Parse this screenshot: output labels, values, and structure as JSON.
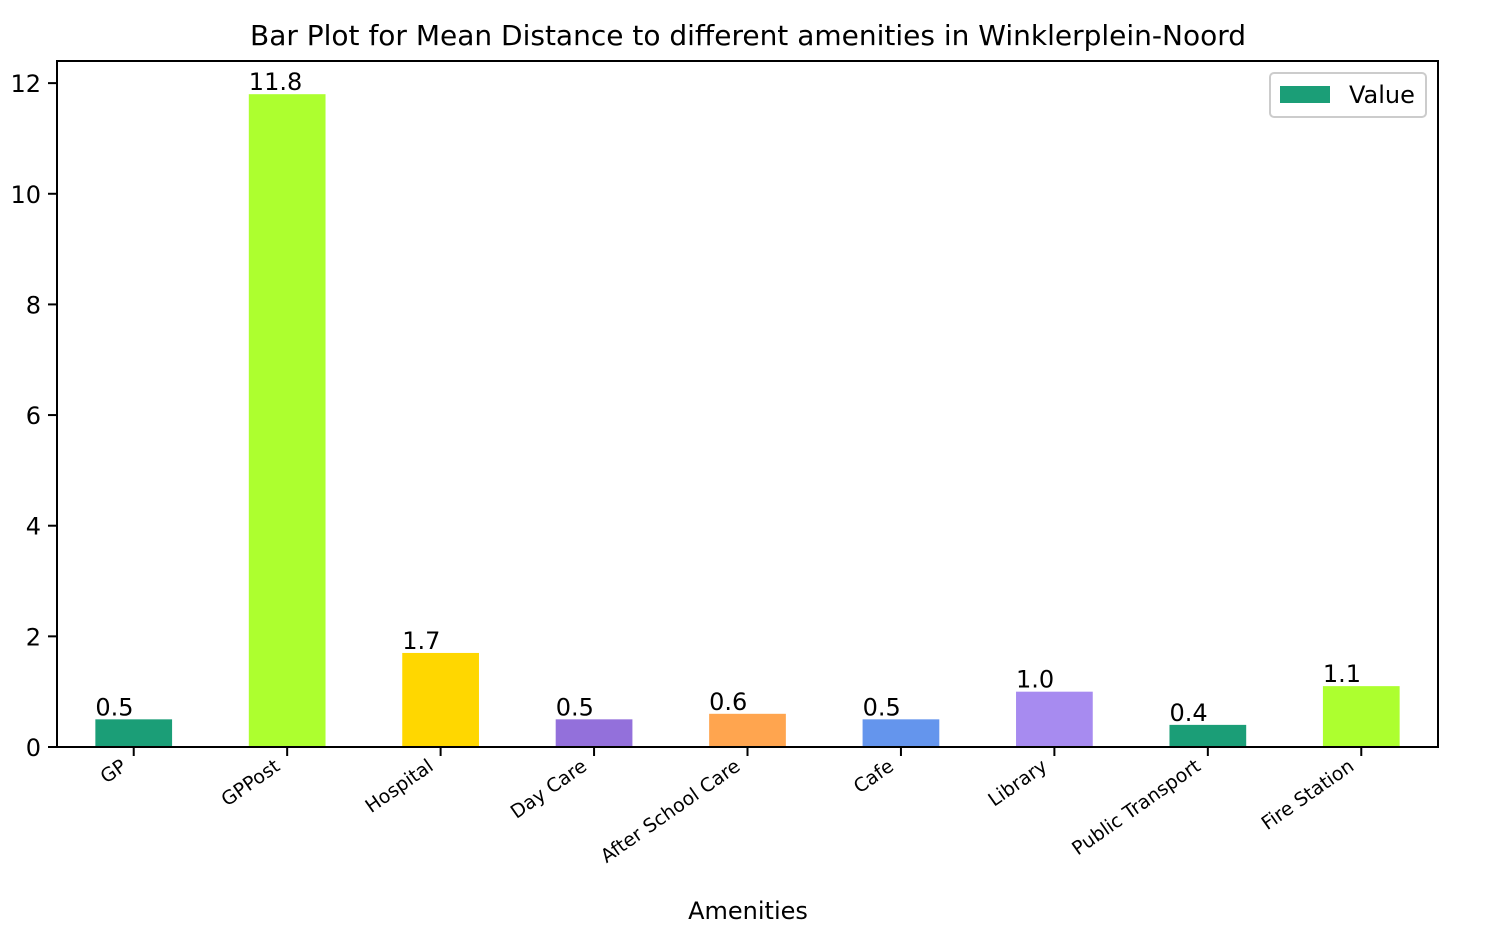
{
  "chart_data": {
    "type": "bar",
    "title": "Bar Plot for Mean Distance to different amenities in Winklerplein-Noord",
    "xlabel": "Amenities",
    "ylabel": "",
    "categories": [
      "GP",
      "GPPost",
      "Hospital",
      "Day Care",
      "After School Care",
      "Cafe",
      "Library",
      "Public Transport",
      "Fire Station"
    ],
    "values": [
      0.5,
      11.8,
      1.7,
      0.5,
      0.6,
      0.5,
      1.0,
      0.4,
      1.1
    ],
    "value_labels": [
      "0.5",
      "11.8",
      "1.7",
      "0.5",
      "0.6",
      "0.5",
      "1.0",
      "0.4",
      "1.1"
    ],
    "colors": [
      "#1b9e77",
      "#adff2f",
      "#ffd700",
      "#9370db",
      "#ffa54f",
      "#6495ed",
      "#a78bf0",
      "#1b9e77",
      "#adff2f"
    ],
    "ylim": [
      0,
      12.4
    ],
    "yticks": [
      0,
      2,
      4,
      6,
      8,
      10,
      12
    ],
    "grid": false,
    "legend": {
      "position": "top-right",
      "entries": [
        {
          "label": "Value",
          "color": "#1b9e77"
        }
      ]
    }
  }
}
